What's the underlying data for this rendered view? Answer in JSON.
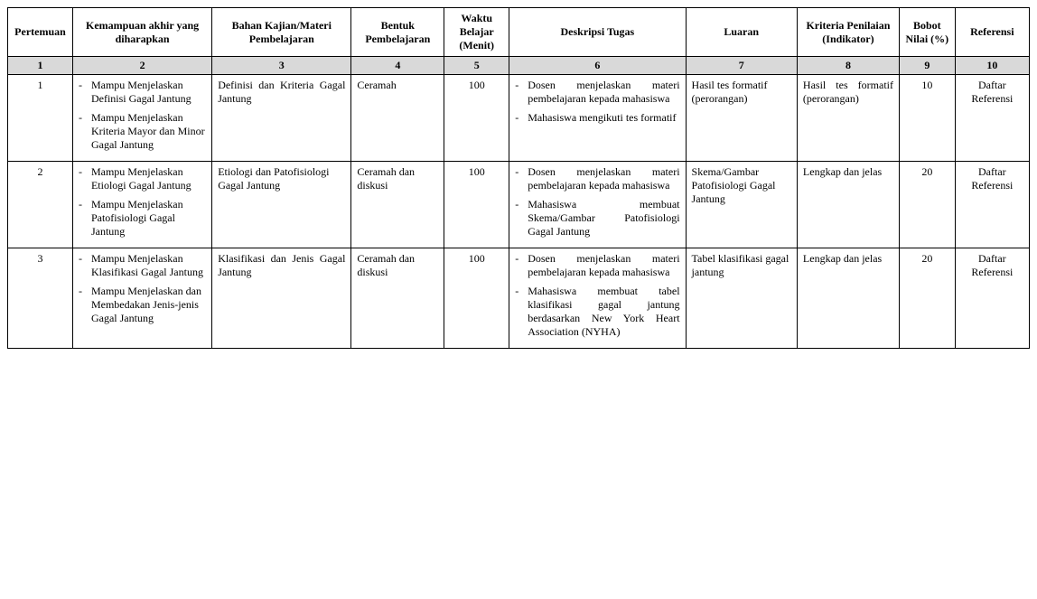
{
  "headers": {
    "col1": "Pertemuan",
    "col2": "Kemampuan akhir yang diharapkan",
    "col3": "Bahan Kajian/Materi Pembelajaran",
    "col4": "Bentuk Pembelajaran",
    "col5": "Waktu Belajar (Menit)",
    "col6": "Deskripsi Tugas",
    "col7": "Luaran",
    "col8": "Kriteria Penilaian (Indikator)",
    "col9": "Bobot Nilai (%)",
    "col10": "Referensi"
  },
  "numrow": {
    "n1": "1",
    "n2": "2",
    "n3": "3",
    "n4": "4",
    "n5": "5",
    "n6": "6",
    "n7": "7",
    "n8": "8",
    "n9": "9",
    "n10": "10"
  },
  "rows": [
    {
      "pertemuan": "1",
      "kemampuan_items": [
        "Mampu Menjelaskan Definisi Gagal Jantung",
        "Mampu Menjelaskan Kriteria Mayor dan Minor Gagal Jantung"
      ],
      "bahan": "Definisi dan Kriteria Gagal Jantung",
      "bentuk": "Ceramah",
      "waktu": "100",
      "deskripsi_items": [
        "Dosen menjelaskan materi pembelajaran kepada mahasiswa",
        "Mahasiswa mengikuti tes formatif"
      ],
      "luaran": "Hasil tes formatif (perorangan)",
      "kriteria": "Hasil tes formatif (perorangan)",
      "bobot": "10",
      "referensi": "Daftar Referensi"
    },
    {
      "pertemuan": "2",
      "kemampuan_items": [
        "Mampu Menjelaskan Etiologi Gagal Jantung",
        "Mampu Menjelaskan Patofisiologi Gagal Jantung"
      ],
      "bahan": "Etiologi dan Patofisiologi Gagal Jantung",
      "bentuk": "Ceramah dan diskusi",
      "waktu": "100",
      "deskripsi_items": [
        "Dosen menjelaskan materi pembelajaran kepada mahasiswa",
        "Mahasiswa membuat Skema/Gambar Patofisiologi Gagal Jantung"
      ],
      "luaran": "Skema/Gambar Patofisiologi Gagal Jantung",
      "kriteria": "Lengkap dan jelas",
      "bobot": "20",
      "referensi": "Daftar Referensi"
    },
    {
      "pertemuan": "3",
      "kemampuan_items": [
        "Mampu Menjelaskan Klasifikasi Gagal Jantung",
        "Mampu Menjelaskan dan Membedakan Jenis-jenis Gagal Jantung"
      ],
      "bahan": "Klasifikasi dan Jenis Gagal Jantung",
      "bentuk": "Ceramah dan diskusi",
      "waktu": "100",
      "deskripsi_items": [
        "Dosen menjelaskan materi pembelajaran kepada mahasiswa",
        "Mahasiswa membuat tabel klasifikasi gagal jantung berdasarkan New York Heart Association (NYHA)"
      ],
      "luaran": "Tabel klasifikasi gagal jantung",
      "kriteria": "Lengkap dan jelas",
      "bobot": "20",
      "referensi": "Daftar Referensi"
    }
  ]
}
